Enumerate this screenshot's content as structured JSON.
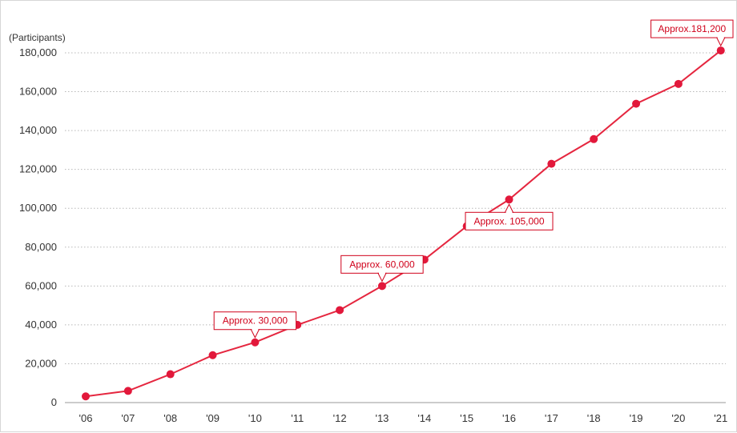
{
  "chart_data": {
    "type": "line",
    "title": "",
    "xlabel": "",
    "ylabel": "(Participants)",
    "ylim": [
      0,
      180000
    ],
    "grid": true,
    "color": "#e5263f",
    "categories": [
      "'06",
      "'07",
      "'08",
      "'09",
      "'10",
      "'11",
      "'12",
      "'13",
      "'14",
      "'15",
      "'16",
      "'17",
      "'18",
      "'19",
      "'20",
      "'21"
    ],
    "y_ticks": [
      0,
      20000,
      40000,
      60000,
      80000,
      100000,
      120000,
      140000,
      160000,
      180000
    ],
    "y_tick_labels": [
      "0",
      "20,000",
      "40,000",
      "60,000",
      "80,000",
      "100,000",
      "120,000",
      "140,000",
      "160,000",
      "180,000"
    ],
    "series": [
      {
        "values": [
          3200,
          6000,
          14600,
          24400,
          31000,
          40000,
          47600,
          60000,
          73600,
          90800,
          104500,
          122900,
          135600,
          153800,
          164000,
          181200
        ]
      }
    ],
    "annotations": [
      {
        "index": 4,
        "text": "Approx. 30,000",
        "position": "above"
      },
      {
        "index": 7,
        "text": "Approx. 60,000",
        "position": "above"
      },
      {
        "index": 10,
        "text": "Approx. 105,000",
        "position": "below"
      },
      {
        "index": 15,
        "text": "Approx.181,200",
        "position": "above"
      }
    ]
  }
}
